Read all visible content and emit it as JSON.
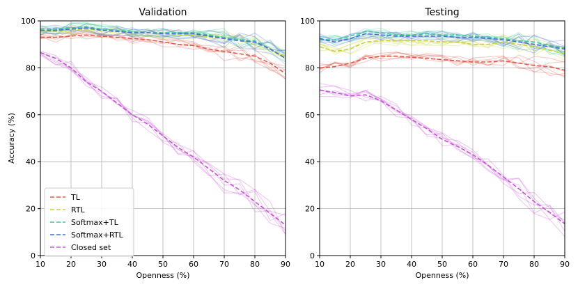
{
  "chart_data": [
    {
      "type": "line",
      "title": "Validation",
      "xlabel": "Openness (%)",
      "ylabel": "Accuracy (%)",
      "xlim": [
        10,
        90
      ],
      "ylim": [
        0,
        100
      ],
      "xticks": [
        10,
        20,
        30,
        40,
        50,
        60,
        70,
        80,
        90
      ],
      "yticks": [
        0,
        20,
        40,
        60,
        80,
        100
      ],
      "grid": true,
      "legend_position": "lower-left",
      "x": [
        10,
        15,
        20,
        25,
        30,
        35,
        40,
        45,
        50,
        55,
        60,
        65,
        70,
        75,
        80,
        85,
        90
      ],
      "series": [
        {
          "name": "TL",
          "color": "#e05a4a",
          "values": [
            93,
            93,
            93.5,
            94,
            93.5,
            93,
            92.5,
            92,
            91,
            90,
            89.5,
            88,
            87,
            86,
            85,
            82,
            77.5
          ]
        },
        {
          "name": "RTL",
          "color": "#c8d43a",
          "values": [
            95.5,
            95.5,
            96,
            96.5,
            96,
            95.5,
            95,
            95,
            94.5,
            94,
            94,
            93,
            92.5,
            91.5,
            91,
            88,
            85
          ]
        },
        {
          "name": "Softmax+TL",
          "color": "#3ec99a",
          "values": [
            96.5,
            96.5,
            97,
            97.5,
            96.5,
            96,
            95.5,
            95,
            95,
            95,
            95,
            94,
            93,
            92,
            91.5,
            88,
            84
          ]
        },
        {
          "name": "Softmax+RTL",
          "color": "#4a6fd6",
          "values": [
            96,
            96,
            96.5,
            97,
            96,
            95.5,
            95,
            95,
            94.5,
            94.5,
            94.5,
            93.5,
            92.5,
            91.5,
            91,
            88,
            84
          ]
        },
        {
          "name": "Closed set",
          "color": "#c853d8",
          "values": [
            86.5,
            84,
            80,
            74,
            70,
            65,
            60,
            56,
            51,
            46,
            42,
            37,
            32,
            28,
            23,
            18,
            13
          ]
        }
      ]
    },
    {
      "type": "line",
      "title": "Testing",
      "xlabel": "Openness (%)",
      "ylabel": "",
      "xlim": [
        10,
        90
      ],
      "ylim": [
        0,
        100
      ],
      "xticks": [
        10,
        20,
        30,
        40,
        50,
        60,
        70,
        80,
        90
      ],
      "yticks": [
        0,
        20,
        40,
        60,
        80,
        100
      ],
      "grid": true,
      "legend_position": "none",
      "x": [
        10,
        15,
        20,
        25,
        30,
        35,
        40,
        45,
        50,
        55,
        60,
        65,
        70,
        75,
        80,
        85,
        90
      ],
      "series": [
        {
          "name": "TL",
          "color": "#e05a4a",
          "values": [
            80,
            80.5,
            82,
            84,
            85,
            85,
            84.5,
            84,
            83.5,
            83,
            82.5,
            82.5,
            83,
            82,
            81,
            80.5,
            79
          ]
        },
        {
          "name": "RTL",
          "color": "#c8d43a",
          "values": [
            89,
            87,
            88,
            91,
            91.5,
            91.5,
            91.5,
            91.5,
            91,
            91,
            90,
            90,
            91,
            90,
            89,
            87.5,
            86
          ]
        },
        {
          "name": "Softmax+TL",
          "color": "#3ec99a",
          "values": [
            92,
            92,
            93.5,
            95.5,
            95,
            94,
            94,
            94.5,
            94,
            94,
            93.5,
            93,
            92.5,
            91.5,
            91,
            89.5,
            88.5
          ]
        },
        {
          "name": "Softmax+RTL",
          "color": "#4a6fd6",
          "values": [
            92.5,
            91,
            92.5,
            94.5,
            94,
            93.5,
            93.5,
            93.5,
            93.5,
            93,
            93,
            92.5,
            92,
            91,
            90,
            89,
            88
          ]
        },
        {
          "name": "Closed set",
          "color": "#c853d8",
          "values": [
            70.5,
            69.5,
            68,
            68.5,
            66,
            62,
            58,
            54,
            49.5,
            46.5,
            43,
            38.5,
            33.5,
            28.5,
            23,
            18.5,
            13.5
          ]
        }
      ]
    }
  ]
}
